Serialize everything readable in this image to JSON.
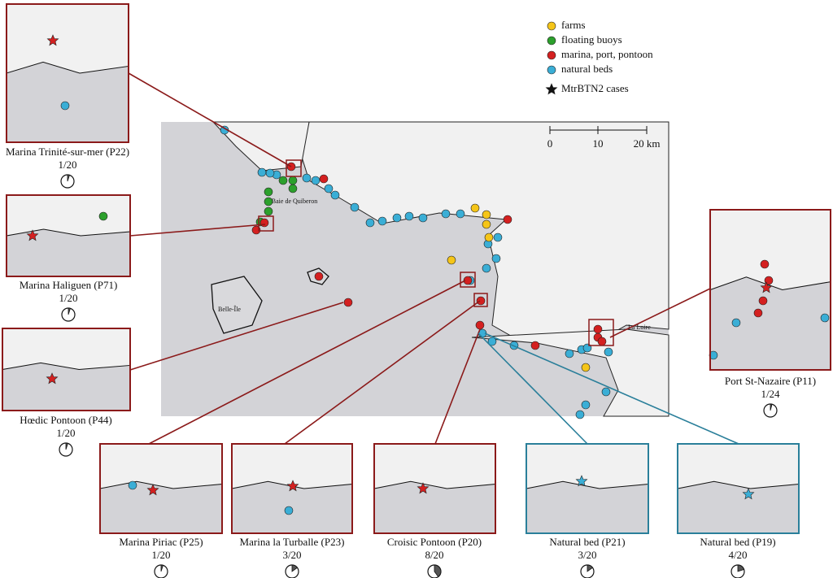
{
  "legend": {
    "items": [
      "farms",
      "floating buoys",
      "marina, port, pontoon",
      "natural beds"
    ],
    "cases": "MtrBTN2 cases"
  },
  "scale_bar": [
    "0",
    "10",
    "20 km"
  ],
  "map_labels": [
    "Baie de Quiberon",
    "Belle-Île",
    "La Loire"
  ],
  "insets": [
    {
      "label": "Marina Trinité-sur-mer (P22)",
      "ratio": "1/20"
    },
    {
      "label": "Marina Haliguen (P71)",
      "ratio": "1/20"
    },
    {
      "label": "Hœdic Pontoon (P44)",
      "ratio": "1/20"
    },
    {
      "label": "Marina Piriac (P25)",
      "ratio": "1/20"
    },
    {
      "label": "Marina la Turballe (P23)",
      "ratio": "3/20"
    },
    {
      "label": "Croisic Pontoon (P20)",
      "ratio": "8/20"
    },
    {
      "label": "Natural bed (P21)",
      "ratio": "3/20"
    },
    {
      "label": "Natural bed (P19)",
      "ratio": "4/20"
    },
    {
      "label": "Port St-Nazaire (P11)",
      "ratio": "1/24"
    }
  ]
}
